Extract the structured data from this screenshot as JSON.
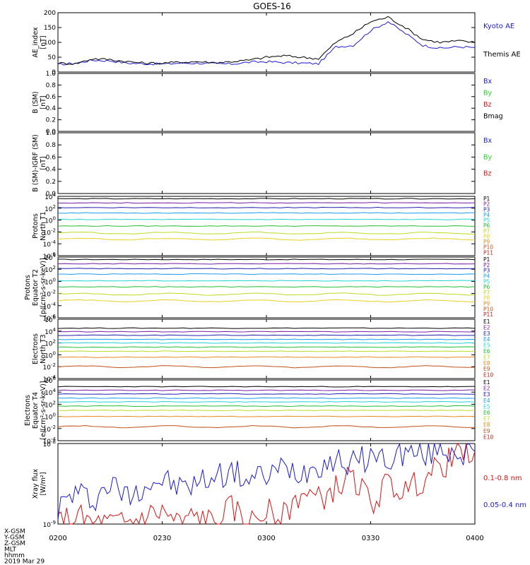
{
  "title": "GOES-16",
  "colors": {
    "black": "#000000",
    "blue": "#1a1ad4",
    "green": "#22dd22",
    "red": "#dd1111",
    "purple": "#7a1ca8",
    "navy": "#2020b0",
    "skyblue": "#1a9cf0",
    "cyan": "#22d4d4",
    "green2": "#22c033",
    "yellowgreen": "#b8dd22",
    "yellow": "#e8d020",
    "orange": "#e88a20",
    "brown": "#c05018",
    "darkred": "#b8201a"
  },
  "time_axis": {
    "ticks": [
      "0200",
      "0230",
      "0300",
      "0330",
      "0400"
    ],
    "tick_minutes": [
      0,
      30,
      60,
      90,
      120
    ],
    "range_minutes": [
      0,
      120
    ]
  },
  "footer_labels": [
    "X-GSM",
    "Y-GSM",
    "Z-GSM",
    "MLT",
    "hhmm",
    "2019 Mar 29"
  ],
  "chart_data": [
    {
      "type": "line",
      "ylabel": [
        "AE_index",
        "[nT]"
      ],
      "ylim": [
        0,
        200
      ],
      "yticks": [
        "0",
        "50",
        "100",
        "150",
        "200"
      ],
      "ytick_values": [
        0,
        50,
        100,
        150,
        200
      ],
      "x_minutes": [
        0,
        5,
        10,
        15,
        20,
        25,
        30,
        35,
        40,
        45,
        50,
        55,
        60,
        65,
        70,
        75,
        80,
        85,
        90,
        95,
        100,
        105,
        110,
        115,
        120
      ],
      "series": [
        {
          "name": "Kyoto AE",
          "color": "blue",
          "values": [
            25,
            30,
            40,
            38,
            30,
            28,
            27,
            30,
            30,
            28,
            27,
            33,
            35,
            32,
            30,
            28,
            85,
            90,
            140,
            170,
            130,
            90,
            80,
            85,
            83
          ]
        },
        {
          "name": "Themis AE",
          "color": "black",
          "values": [
            30,
            28,
            45,
            42,
            35,
            30,
            30,
            33,
            35,
            32,
            35,
            40,
            50,
            55,
            50,
            45,
            100,
            130,
            170,
            185,
            150,
            110,
            100,
            105,
            100
          ]
        }
      ]
    },
    {
      "type": "line",
      "ylabel": [
        "B (SM)",
        "[nT]"
      ],
      "ylim": [
        0,
        1
      ],
      "yticks": [
        "0.0",
        "0.2",
        "0.4",
        "0.6",
        "0.8",
        "1.0"
      ],
      "ytick_values": [
        0,
        0.2,
        0.4,
        0.6,
        0.8,
        1.0
      ],
      "series": [
        {
          "name": "Bx",
          "color": "blue",
          "values": []
        },
        {
          "name": "By",
          "color": "green",
          "values": []
        },
        {
          "name": "Bz",
          "color": "red",
          "values": []
        },
        {
          "name": "Bmag",
          "color": "black",
          "values": []
        }
      ]
    },
    {
      "type": "line",
      "ylabel": [
        "B (SM)-IGRF (SM)",
        "[nT]"
      ],
      "ylim": [
        0,
        1
      ],
      "yticks": [
        "0.0",
        "0.2",
        "0.4",
        "0.6",
        "0.8",
        "1.0"
      ],
      "ytick_values": [
        0,
        0.2,
        0.4,
        0.6,
        0.8,
        1.0
      ],
      "series": [
        {
          "name": "Bx",
          "color": "blue",
          "values": []
        },
        {
          "name": "By",
          "color": "green",
          "values": []
        },
        {
          "name": "Bz",
          "color": "red",
          "values": []
        }
      ]
    },
    {
      "type": "line",
      "log": true,
      "ylabel": [
        "Protons",
        "North T1"
      ],
      "ylim_exp": [
        -6,
        4
      ],
      "yticks": [
        {
          "b": "10",
          "e": "4"
        },
        {
          "b": "10",
          "e": "2"
        },
        {
          "b": "10",
          "e": "0"
        },
        {
          "b": "10",
          "e": "-2"
        },
        {
          "b": "10",
          "e": "-4"
        },
        {
          "b": "10",
          "e": "-6"
        }
      ],
      "ytick_exp": [
        4,
        2,
        0,
        -2,
        -4,
        -6
      ],
      "series": [
        {
          "name": "P1",
          "color": "black",
          "log_level": 3.6
        },
        {
          "name": "P2",
          "color": "purple",
          "log_level": 2.9
        },
        {
          "name": "P3",
          "color": "navy",
          "log_level": 2.1
        },
        {
          "name": "P4",
          "color": "skyblue",
          "log_level": 1.2
        },
        {
          "name": "P5",
          "color": "cyan",
          "log_level": 0.1
        },
        {
          "name": "P6",
          "color": "green2",
          "log_level": -1.0
        },
        {
          "name": "P7",
          "color": "yellowgreen",
          "log_level": -2.2
        },
        {
          "name": "P8",
          "color": "yellow",
          "log_level": -3.2
        },
        {
          "name": "P9",
          "color": "orange"
        },
        {
          "name": "P10",
          "color": "brown"
        },
        {
          "name": "P11",
          "color": "darkred"
        }
      ]
    },
    {
      "type": "line",
      "log": true,
      "ylabel": [
        "Protons",
        "Equator T2",
        "[p/(cm²-s-sr-keV)]"
      ],
      "ylim_exp": [
        -6,
        4
      ],
      "yticks": [
        {
          "b": "10",
          "e": "4"
        },
        {
          "b": "10",
          "e": "2"
        },
        {
          "b": "10",
          "e": "0"
        },
        {
          "b": "10",
          "e": "-2"
        },
        {
          "b": "10",
          "e": "-4"
        },
        {
          "b": "10",
          "e": "-6"
        }
      ],
      "ytick_exp": [
        4,
        2,
        0,
        -2,
        -4,
        -6
      ],
      "series": [
        {
          "name": "P1",
          "color": "black",
          "log_level": 3.6
        },
        {
          "name": "P2",
          "color": "purple",
          "log_level": 2.9
        },
        {
          "name": "P3",
          "color": "navy",
          "log_level": 2.1
        },
        {
          "name": "P4",
          "color": "skyblue",
          "log_level": 1.2
        },
        {
          "name": "P5",
          "color": "cyan",
          "log_level": 0.1
        },
        {
          "name": "P6",
          "color": "green2",
          "log_level": -0.9
        },
        {
          "name": "P7",
          "color": "yellowgreen",
          "log_level": -2.1
        },
        {
          "name": "P8",
          "color": "yellow",
          "log_level": -3.2
        },
        {
          "name": "P9",
          "color": "orange"
        },
        {
          "name": "P10",
          "color": "brown"
        },
        {
          "name": "P11",
          "color": "darkred"
        }
      ]
    },
    {
      "type": "line",
      "log": true,
      "ylabel": [
        "Electrons",
        "North T3"
      ],
      "ylim_exp": [
        -4,
        6
      ],
      "yticks": [
        {
          "b": "10",
          "e": "6"
        },
        {
          "b": "10",
          "e": "4"
        },
        {
          "b": "10",
          "e": "2"
        },
        {
          "b": "10",
          "e": "0"
        },
        {
          "b": "10",
          "e": "-2"
        },
        {
          "b": "10",
          "e": "-4"
        }
      ],
      "ytick_exp": [
        6,
        4,
        2,
        0,
        -2,
        -4
      ],
      "series": [
        {
          "name": "E1",
          "color": "black",
          "log_level": 4.5
        },
        {
          "name": "E2",
          "color": "purple",
          "log_level": 3.9
        },
        {
          "name": "E3",
          "color": "navy",
          "log_level": 3.3
        },
        {
          "name": "E4",
          "color": "skyblue",
          "log_level": 2.6
        },
        {
          "name": "E5",
          "color": "cyan",
          "log_level": 2.0
        },
        {
          "name": "E6",
          "color": "green2",
          "log_level": 1.3
        },
        {
          "name": "E7",
          "color": "yellowgreen",
          "log_level": 0.6
        },
        {
          "name": "E8",
          "color": "orange",
          "log_level": -0.4
        },
        {
          "name": "E9",
          "color": "brown",
          "log_level": -2.0
        },
        {
          "name": "E10",
          "color": "darkred"
        }
      ]
    },
    {
      "type": "line",
      "log": true,
      "ylabel": [
        "Electrons",
        "Equator T4",
        "[e/(cm²-s-sr-keV)]"
      ],
      "ylim_exp": [
        -4,
        6
      ],
      "yticks": [
        {
          "b": "10",
          "e": "6"
        },
        {
          "b": "10",
          "e": "4"
        },
        {
          "b": "10",
          "e": "2"
        },
        {
          "b": "10",
          "e": "0"
        },
        {
          "b": "10",
          "e": "-2"
        },
        {
          "b": "10",
          "e": "-4"
        }
      ],
      "ytick_exp": [
        6,
        4,
        2,
        0,
        -2,
        -4
      ],
      "series": [
        {
          "name": "E1",
          "color": "black",
          "log_level": 4.9
        },
        {
          "name": "E2",
          "color": "purple",
          "log_level": 4.3
        },
        {
          "name": "E3",
          "color": "navy",
          "log_level": 3.7
        },
        {
          "name": "E4",
          "color": "skyblue",
          "log_level": 3.0
        },
        {
          "name": "E5",
          "color": "cyan",
          "log_level": 2.4
        },
        {
          "name": "E6",
          "color": "green2",
          "log_level": 1.7
        },
        {
          "name": "E7",
          "color": "yellowgreen",
          "log_level": 1.0
        },
        {
          "name": "E8",
          "color": "orange",
          "log_level": 0.0
        },
        {
          "name": "E9",
          "color": "brown",
          "log_level": -1.7
        },
        {
          "name": "E10",
          "color": "darkred"
        }
      ]
    },
    {
      "type": "line",
      "log": true,
      "ylabel": [
        "Xray flux",
        "[W/m²]"
      ],
      "ylim_exp": [
        -9,
        -8
      ],
      "yticks": [
        {
          "b": "10",
          "e": "-8"
        },
        {
          "b": "10",
          "e": "-9"
        }
      ],
      "ytick_exp": [
        -8,
        -9
      ],
      "x_minutes": [
        0,
        5,
        10,
        15,
        20,
        25,
        30,
        35,
        40,
        45,
        50,
        55,
        60,
        65,
        70,
        75,
        80,
        85,
        90,
        95,
        100,
        105,
        110,
        115,
        120
      ],
      "series": [
        {
          "name": "0.1-0.8 nm",
          "color": "red",
          "log_values": [
            -9.0,
            -8.9,
            -9.0,
            -9.0,
            -9.0,
            -8.9,
            -8.85,
            -9.0,
            -8.9,
            -9.0,
            -8.8,
            -9.0,
            -8.85,
            -8.9,
            -8.6,
            -8.7,
            -8.55,
            -8.4,
            -8.75,
            -8.5,
            -8.6,
            -8.45,
            -8.3,
            -8.15,
            -8.1
          ]
        },
        {
          "name": "0.05-0.4 nm",
          "color": "blue",
          "log_values": [
            -8.8,
            -8.6,
            -8.7,
            -8.5,
            -8.65,
            -8.5,
            -8.45,
            -8.55,
            -8.5,
            -8.4,
            -8.35,
            -8.45,
            -8.4,
            -8.3,
            -8.35,
            -8.25,
            -8.2,
            -8.25,
            -8.15,
            -8.2,
            -8.1,
            -8.15,
            -8.05,
            -8.1,
            -8.1
          ]
        }
      ]
    }
  ]
}
